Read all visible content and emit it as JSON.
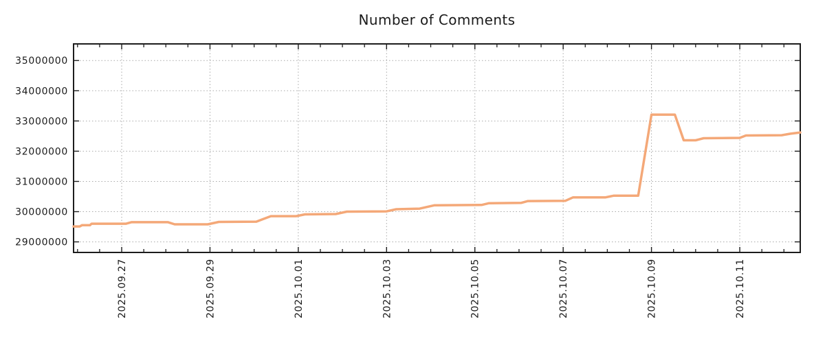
{
  "chart_data": {
    "type": "line",
    "title": "Number of Comments",
    "xlabel": "",
    "ylabel": "",
    "grid": "dotted",
    "legend": "none",
    "t_origin": "days since 2025-09-25 00:00",
    "x_range_days": [
      0.91,
      17.37
    ],
    "y_range": [
      28650000,
      35550000
    ],
    "x_minor_step_days": 0.5,
    "x_minor_start": 1.0,
    "x_minor_end": 17.0,
    "x_ticks": [
      {
        "t": 2,
        "label": "2025.09.27"
      },
      {
        "t": 4,
        "label": "2025.09.29"
      },
      {
        "t": 6,
        "label": "2025.10.01"
      },
      {
        "t": 8,
        "label": "2025.10.03"
      },
      {
        "t": 10,
        "label": "2025.10.05"
      },
      {
        "t": 12,
        "label": "2025.10.07"
      },
      {
        "t": 14,
        "label": "2025.10.09"
      },
      {
        "t": 16,
        "label": "2025.10.11"
      }
    ],
    "y_ticks": [
      {
        "value": 29000000,
        "label": "29000000"
      },
      {
        "value": 30000000,
        "label": "30000000"
      },
      {
        "value": 31000000,
        "label": "31000000"
      },
      {
        "value": 32000000,
        "label": "32000000"
      },
      {
        "value": 33000000,
        "label": "33000000"
      },
      {
        "value": 34000000,
        "label": "34000000"
      },
      {
        "value": 35000000,
        "label": "35000000"
      }
    ],
    "series": [
      {
        "name": "number-of-comments",
        "color": "#f4a878",
        "points": [
          [
            0.91,
            29510000
          ],
          [
            1.05,
            29510000
          ],
          [
            1.1,
            29550000
          ],
          [
            1.28,
            29550000
          ],
          [
            1.32,
            29600000
          ],
          [
            2.1,
            29600000
          ],
          [
            2.22,
            29650000
          ],
          [
            3.05,
            29650000
          ],
          [
            3.2,
            29580000
          ],
          [
            3.95,
            29580000
          ],
          [
            4.2,
            29660000
          ],
          [
            5.05,
            29670000
          ],
          [
            5.38,
            29850000
          ],
          [
            5.95,
            29850000
          ],
          [
            6.15,
            29910000
          ],
          [
            6.85,
            29920000
          ],
          [
            7.1,
            30000000
          ],
          [
            8.0,
            30010000
          ],
          [
            8.22,
            30080000
          ],
          [
            8.75,
            30100000
          ],
          [
            9.08,
            30210000
          ],
          [
            10.15,
            30220000
          ],
          [
            10.32,
            30280000
          ],
          [
            11.05,
            30290000
          ],
          [
            11.2,
            30350000
          ],
          [
            12.05,
            30360000
          ],
          [
            12.22,
            30470000
          ],
          [
            12.95,
            30470000
          ],
          [
            13.15,
            30530000
          ],
          [
            13.7,
            30530000
          ],
          [
            14.0,
            33210000
          ],
          [
            14.53,
            33210000
          ],
          [
            14.73,
            32360000
          ],
          [
            15.0,
            32360000
          ],
          [
            15.18,
            32430000
          ],
          [
            16.0,
            32440000
          ],
          [
            16.14,
            32520000
          ],
          [
            16.95,
            32530000
          ],
          [
            17.15,
            32580000
          ],
          [
            17.37,
            32620000
          ]
        ]
      }
    ],
    "colors": {
      "line": "#f4a878",
      "grid": "#a8a8a8",
      "axis": "#1c1c1c",
      "text": "#1a1a1a",
      "background": "#ffffff"
    }
  }
}
